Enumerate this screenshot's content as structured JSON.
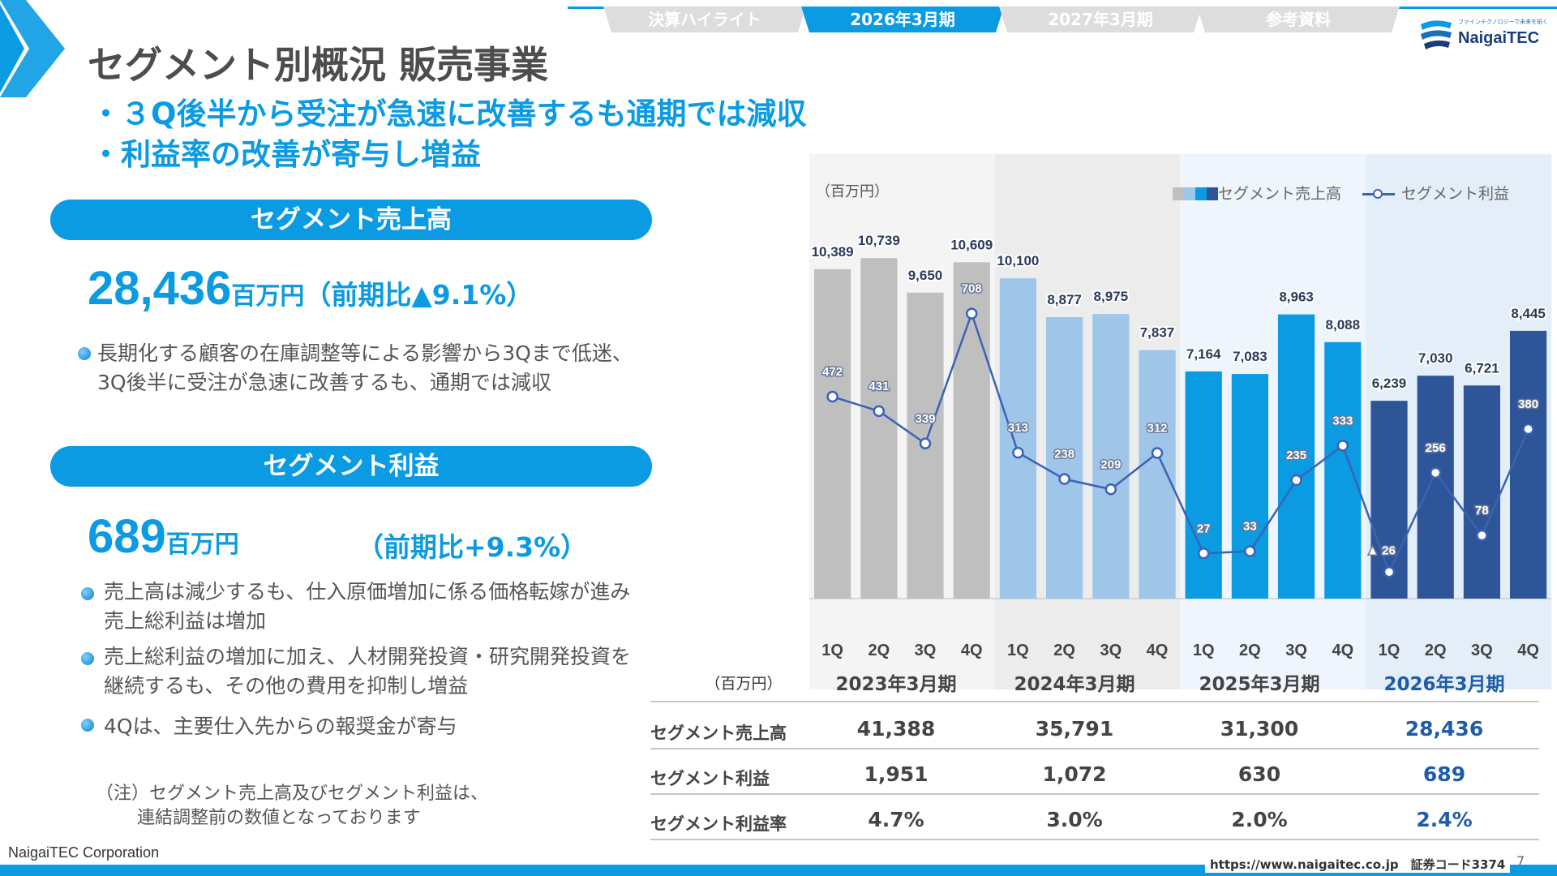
{
  "nav": {
    "tabs": [
      {
        "label": "決算ハイライト",
        "active": false
      },
      {
        "label": "2026年3月期",
        "active": true
      },
      {
        "label": "2027年3月期",
        "active": false
      },
      {
        "label": "参考資料",
        "active": false
      }
    ]
  },
  "logo": {
    "tagline": "ファインテクノロジーで未来を拓く",
    "name": "NaigaiTEC"
  },
  "title": "セグメント別概況 販売事業",
  "lead_bullets": [
    "・３Q後半から受注が急速に改善するも通期では減収",
    "・利益率の改善が寄与し増益"
  ],
  "sales": {
    "header": "セグメント売上高",
    "value": "28,436",
    "unit": "百万円",
    "yoy": "（前期比▲9.1%）",
    "bullets": [
      [
        "長期化する顧客の在庫調整等による影響から3Qまで低迷、",
        "3Q後半に受注が急速に改善するも、通期では減収"
      ]
    ]
  },
  "profit": {
    "header": "セグメント利益",
    "value": "689",
    "unit": "百万円",
    "yoy": "（前期比+9.3%）",
    "bullets": [
      [
        "売上高は減少するも、仕入原価増加に係る価格転嫁が進み",
        "売上総利益は増加"
      ],
      [
        "売上総利益の増加に加え、人材開発投資・研究開発投資を",
        "継続するも、その他の費用を抑制し増益"
      ],
      [
        "4Qは、主要仕入先からの報奨金が寄与"
      ]
    ]
  },
  "note": [
    "（注）セグメント売上高及びセグメント利益は、",
    "　　 連結調整前の数値となっております"
  ],
  "colors": {
    "accent": "#0a9be3",
    "fy2023_bar": "#bfbfbf",
    "fy2024_bar": "#9fc5e8",
    "fy2025_bar": "#0a9be3",
    "fy2026_bar": "#2e5597",
    "line": "#3b62b7"
  },
  "chart_data": {
    "type": "bar",
    "ylabel": "（百万円）",
    "categories": [
      "1Q",
      "2Q",
      "3Q",
      "4Q",
      "1Q",
      "2Q",
      "3Q",
      "4Q",
      "1Q",
      "2Q",
      "3Q",
      "4Q",
      "1Q",
      "2Q",
      "3Q",
      "4Q"
    ],
    "periods": [
      "2023年3月期",
      "2024年3月期",
      "2025年3月期",
      "2026年3月期"
    ],
    "series": [
      {
        "name": "セグメント売上高",
        "type": "bar",
        "values": [
          10389,
          10739,
          9650,
          10609,
          10100,
          8877,
          8975,
          7837,
          7164,
          7083,
          8963,
          8088,
          6239,
          7030,
          6721,
          8445
        ]
      },
      {
        "name": "セグメント利益",
        "type": "line",
        "values": [
          472,
          431,
          339,
          708,
          313,
          238,
          209,
          312,
          27,
          33,
          235,
          333,
          -26,
          256,
          78,
          380
        ],
        "labels": [
          "472",
          "431",
          "339",
          "708",
          "313",
          "238",
          "209",
          "312",
          "27",
          "33",
          "235",
          "333",
          "▲ 26",
          "256",
          "78",
          "380"
        ]
      }
    ]
  },
  "table": {
    "unit": "（百万円）",
    "rows": [
      {
        "label": "セグメント売上高",
        "values": [
          "41,388",
          "35,791",
          "31,300",
          "28,436"
        ]
      },
      {
        "label": "セグメント利益",
        "values": [
          "1,951",
          "1,072",
          "630",
          "689"
        ]
      },
      {
        "label": "セグメント利益率",
        "values": [
          "4.7%",
          "3.0%",
          "2.0%",
          "2.4%"
        ]
      }
    ]
  },
  "footer": {
    "corp": "NaigaiTEC Corporation",
    "url": "https://www.naigaitec.co.jp　証券コード3374",
    "page": "7"
  }
}
